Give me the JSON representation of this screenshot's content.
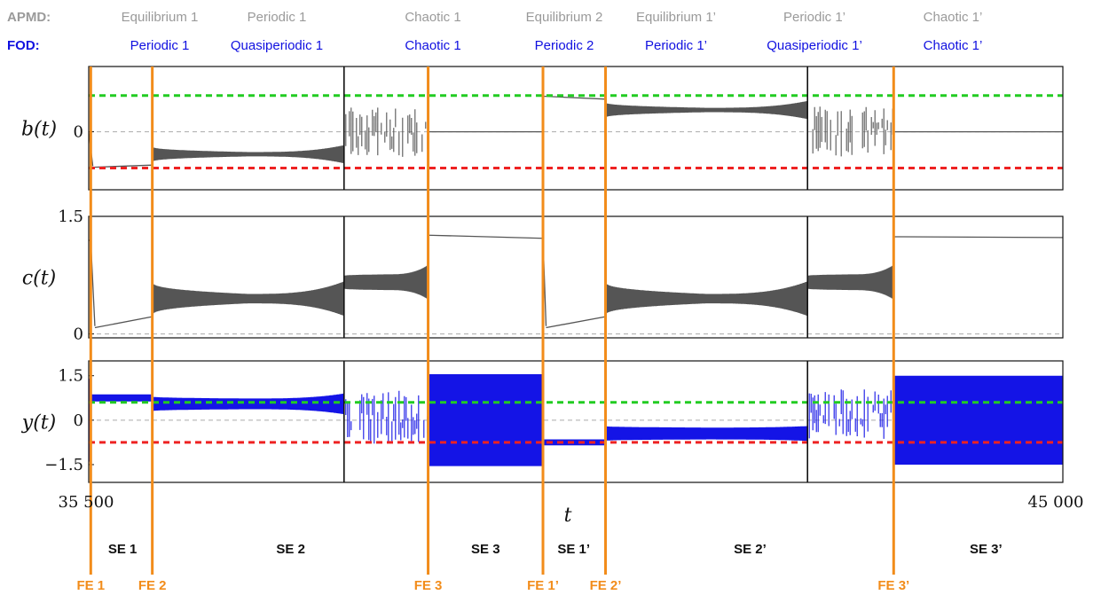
{
  "header": {
    "apmd_label": "APMD:",
    "fod_label": "FOD:",
    "apmd": [
      "Equilibrium 1",
      "Periodic 1",
      "Chaotic 1",
      "Equilibrium 2",
      "Equilibrium 1’",
      "Periodic 1’",
      "Chaotic 1’"
    ],
    "fod": [
      "Periodic 1",
      "Quasiperiodic 1",
      "Chaotic 1",
      "Periodic 2",
      "Periodic 1’",
      "Quasiperiodic 1’",
      "Chaotic 1’"
    ]
  },
  "colors": {
    "trace": "#555555",
    "y_trace": "#1414e6",
    "upper_ref": "#22cc22",
    "lower_ref": "#ee2222",
    "event_line": "#f28c1a",
    "apmd_text": "#9a9a9a",
    "fod_text": "#1010e0"
  },
  "chart_data": {
    "type": "line",
    "xlabel": "t",
    "xlim": [
      35500,
      45000
    ],
    "x_tick_labels": [
      "35 500",
      "45 000"
    ],
    "fe_events": [
      {
        "label": "FE 1",
        "t": 35520
      },
      {
        "label": "FE 2",
        "t": 36120
      },
      {
        "label": "FE 3",
        "t": 38810
      },
      {
        "label": "FE 1’",
        "t": 39930
      },
      {
        "label": "FE 2’",
        "t": 40540
      },
      {
        "label": "FE 3’",
        "t": 43350
      }
    ],
    "regime_boundaries": [
      37990,
      42510
    ],
    "se_segments": [
      {
        "label": "SE 1",
        "t": 35830
      },
      {
        "label": "SE 2",
        "t": 37470
      },
      {
        "label": "SE 3",
        "t": 39370
      },
      {
        "label": "SE 1’",
        "t": 40230
      },
      {
        "label": "SE 2’",
        "t": 41950
      },
      {
        "label": "SE 3’",
        "t": 44250
      }
    ],
    "panels": [
      {
        "ylabel": "b(t)",
        "ylim": [
          -1.6,
          1.8
        ],
        "y_tick_labels": [
          {
            "v": 0,
            "text": "0"
          }
        ],
        "ref_upper": 1.0,
        "ref_lower": -1.0,
        "segments": [
          {
            "t0": 35500,
            "t1": 35500,
            "kind": "flat",
            "v": 0
          },
          {
            "t0": 35500,
            "t1": 35540,
            "kind": "ramp",
            "v0": 0,
            "v1": -0.95
          },
          {
            "t0": 35540,
            "t1": 36120,
            "kind": "ramp",
            "v0": -0.98,
            "v1": -0.92
          },
          {
            "t0": 36120,
            "t1": 37990,
            "kind": "osc",
            "c": -0.62,
            "a0": 0.22,
            "amid": 0.06,
            "a1": 0.25
          },
          {
            "t0": 37990,
            "t1": 38810,
            "kind": "chaos",
            "c": 0,
            "a": 0.7
          },
          {
            "t0": 38810,
            "t1": 39930,
            "kind": "flat",
            "v": 0
          },
          {
            "t0": 39930,
            "t1": 40540,
            "kind": "ramp",
            "v0": 0.98,
            "v1": 0.9
          },
          {
            "t0": 40540,
            "t1": 42510,
            "kind": "osc",
            "c": 0.6,
            "a0": 0.22,
            "amid": 0.06,
            "a1": 0.25
          },
          {
            "t0": 42510,
            "t1": 43350,
            "kind": "chaos",
            "c": 0,
            "a": 0.7
          },
          {
            "t0": 43350,
            "t1": 45000,
            "kind": "flat",
            "v": 0
          }
        ]
      },
      {
        "ylabel": "c(t)",
        "ylim": [
          -0.05,
          1.5
        ],
        "y_tick_labels": [
          {
            "v": 1.5,
            "text": "1.5"
          },
          {
            "v": 0,
            "text": "0"
          }
        ],
        "segments": [
          {
            "t0": 35500,
            "t1": 35520,
            "kind": "ramp",
            "v0": 1.2,
            "v1": 1.18
          },
          {
            "t0": 35520,
            "t1": 35560,
            "kind": "ramp",
            "v0": 1.18,
            "v1": 0.1
          },
          {
            "t0": 35560,
            "t1": 36120,
            "kind": "ramp",
            "v0": 0.08,
            "v1": 0.22
          },
          {
            "t0": 36120,
            "t1": 37990,
            "kind": "osc",
            "c": 0.45,
            "a0": 0.22,
            "amid": 0.06,
            "a1": 0.22
          },
          {
            "t0": 37990,
            "t1": 38810,
            "kind": "osc",
            "c": 0.66,
            "a0": 0.08,
            "amid": 0.1,
            "a1": 0.22
          },
          {
            "t0": 38810,
            "t1": 39930,
            "kind": "ramp",
            "v0": 1.26,
            "v1": 1.22
          },
          {
            "t0": 39930,
            "t1": 39960,
            "kind": "ramp",
            "v0": 1.22,
            "v1": 0.1
          },
          {
            "t0": 39960,
            "t1": 40540,
            "kind": "ramp",
            "v0": 0.08,
            "v1": 0.22
          },
          {
            "t0": 40540,
            "t1": 42510,
            "kind": "osc",
            "c": 0.45,
            "a0": 0.22,
            "amid": 0.06,
            "a1": 0.22
          },
          {
            "t0": 42510,
            "t1": 43350,
            "kind": "osc",
            "c": 0.66,
            "a0": 0.08,
            "amid": 0.1,
            "a1": 0.22
          },
          {
            "t0": 43350,
            "t1": 45000,
            "kind": "ramp",
            "v0": 1.24,
            "v1": 1.23
          }
        ]
      },
      {
        "ylabel": "y(t)",
        "ylim": [
          -2.1,
          2.0
        ],
        "y_tick_labels": [
          {
            "v": 1.5,
            "text": "1.5"
          },
          {
            "v": 0,
            "text": "0"
          },
          {
            "v": -1.5,
            "text": "−1.5"
          }
        ],
        "ref_upper": 0.6,
        "ref_lower": -0.75,
        "segments": [
          {
            "t0": 35500,
            "t1": 35520,
            "kind": "osc",
            "c": 0,
            "a0": 1.4,
            "amid": 1.4,
            "a1": 1.4
          },
          {
            "t0": 35520,
            "t1": 36120,
            "kind": "osc",
            "c": 0.75,
            "a0": 0.12,
            "amid": 0.12,
            "a1": 0.12
          },
          {
            "t0": 36120,
            "t1": 37990,
            "kind": "osc",
            "c": 0.55,
            "a0": 0.25,
            "amid": 0.18,
            "a1": 0.35
          },
          {
            "t0": 37990,
            "t1": 38810,
            "kind": "chaos",
            "c": 0.1,
            "a": 0.9
          },
          {
            "t0": 38810,
            "t1": 39930,
            "kind": "osc",
            "c": 0,
            "a0": 1.55,
            "amid": 1.55,
            "a1": 1.55
          },
          {
            "t0": 39930,
            "t1": 40540,
            "kind": "osc",
            "c": -0.75,
            "a0": 0.1,
            "amid": 0.1,
            "a1": 0.1
          },
          {
            "t0": 40540,
            "t1": 42510,
            "kind": "osc",
            "c": -0.45,
            "a0": 0.25,
            "amid": 0.2,
            "a1": 0.25
          },
          {
            "t0": 42510,
            "t1": 43350,
            "kind": "chaos",
            "c": 0.2,
            "a": 0.85
          },
          {
            "t0": 43350,
            "t1": 45000,
            "kind": "osc",
            "c": 0,
            "a0": 1.5,
            "amid": 1.5,
            "a1": 1.5
          }
        ]
      }
    ]
  }
}
